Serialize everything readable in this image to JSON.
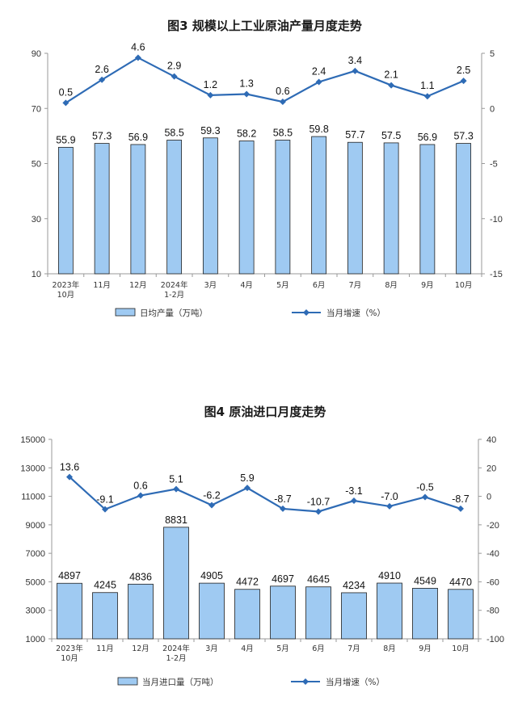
{
  "chart_data": [
    {
      "type": "bar",
      "title": "图3  规模以上工业原油产量月度走势",
      "categories": [
        [
          "2023年",
          "10月"
        ],
        [
          "11月"
        ],
        [
          "12月"
        ],
        [
          "2024年",
          "1-2月"
        ],
        [
          "3月"
        ],
        [
          "4月"
        ],
        [
          "5月"
        ],
        [
          "6月"
        ],
        [
          "7月"
        ],
        [
          "8月"
        ],
        [
          "9月"
        ],
        [
          "10月"
        ]
      ],
      "left_axis": {
        "min": 10,
        "max": 90,
        "ticks": [
          10,
          30,
          50,
          70,
          90
        ]
      },
      "right_axis": {
        "min": -15,
        "max": 5,
        "ticks": [
          -15,
          -10,
          -5,
          0,
          5
        ]
      },
      "series": [
        {
          "name": "日均产量（万吨）",
          "type": "bar",
          "axis": "left",
          "values": [
            55.9,
            57.3,
            56.9,
            58.5,
            59.3,
            58.2,
            58.5,
            59.8,
            57.7,
            57.5,
            56.9,
            57.3
          ]
        },
        {
          "name": "当月增速（%）",
          "type": "line",
          "axis": "right",
          "values": [
            0.5,
            2.6,
            4.6,
            2.9,
            1.2,
            1.3,
            0.6,
            2.4,
            3.4,
            2.1,
            1.1,
            2.5
          ]
        }
      ],
      "legend": "bottom"
    },
    {
      "type": "bar",
      "title": "图4  原油进口月度走势",
      "categories": [
        [
          "2023年",
          "10月"
        ],
        [
          "11月"
        ],
        [
          "12月"
        ],
        [
          "2024年",
          "1-2月"
        ],
        [
          "3月"
        ],
        [
          "4月"
        ],
        [
          "5月"
        ],
        [
          "6月"
        ],
        [
          "7月"
        ],
        [
          "8月"
        ],
        [
          "9月"
        ],
        [
          "10月"
        ]
      ],
      "left_axis": {
        "min": 1000,
        "max": 15000,
        "ticks": [
          1000,
          3000,
          5000,
          7000,
          9000,
          11000,
          13000,
          15000
        ]
      },
      "right_axis": {
        "min": -100,
        "max": 40,
        "ticks": [
          -100,
          -80,
          -60,
          -40,
          -20,
          0,
          20,
          40
        ]
      },
      "series": [
        {
          "name": "当月进口量（万吨）",
          "type": "bar",
          "axis": "left",
          "values": [
            4897,
            4245,
            4836,
            8831,
            4905,
            4472,
            4697,
            4645,
            4234,
            4910,
            4549,
            4470
          ]
        },
        {
          "name": "当月增速（%）",
          "type": "line",
          "axis": "right",
          "values": [
            13.6,
            -9.1,
            0.6,
            5.1,
            -6.2,
            5.9,
            -8.7,
            -10.7,
            -3.1,
            -7.0,
            -0.5,
            -8.7
          ],
          "labels": [
            "13.6",
            "-9.1",
            "0.6",
            "5.1",
            "-6.2",
            "5.9",
            "-8.7",
            "-10.7",
            "-3.1",
            "-7.0",
            "-0.5",
            "-8.7"
          ]
        }
      ],
      "legend": "bottom"
    }
  ],
  "colors": {
    "bar_fill": "#9fcaf2",
    "bar_stroke": "#1f1f1f",
    "line": "#2e6bb5",
    "axis": "#999999"
  }
}
